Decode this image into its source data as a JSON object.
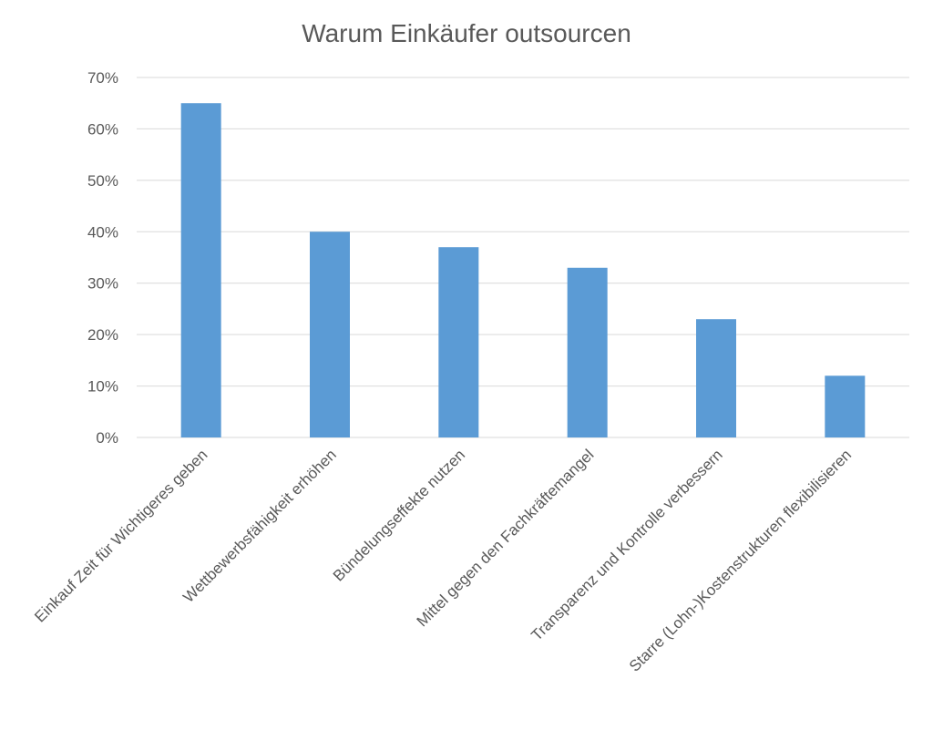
{
  "chart_data": {
    "type": "bar",
    "title": "Warum Einkäufer outsourcen",
    "xlabel": "",
    "ylabel": "",
    "categories": [
      "Einkauf Zeit für Wichtigeres geben",
      "Wettbewerbsfähigkeit erhöhen",
      "Bündelungseffekte nutzen",
      "Mittel gegen den Fachkräftemangel",
      "Transparenz und Kontrolle verbessern",
      "Starre (Lohn-)Kostenstrukturen flexibilisieren"
    ],
    "values": [
      65,
      40,
      37,
      33,
      23,
      12
    ],
    "ylim": [
      0,
      70
    ],
    "yticks": [
      0,
      10,
      20,
      30,
      40,
      50,
      60,
      70
    ],
    "ytick_labels": [
      "0%",
      "10%",
      "20%",
      "30%",
      "40%",
      "50%",
      "60%",
      "70%"
    ],
    "grid": true,
    "legend": "none",
    "bar_color": "#5b9bd5"
  }
}
